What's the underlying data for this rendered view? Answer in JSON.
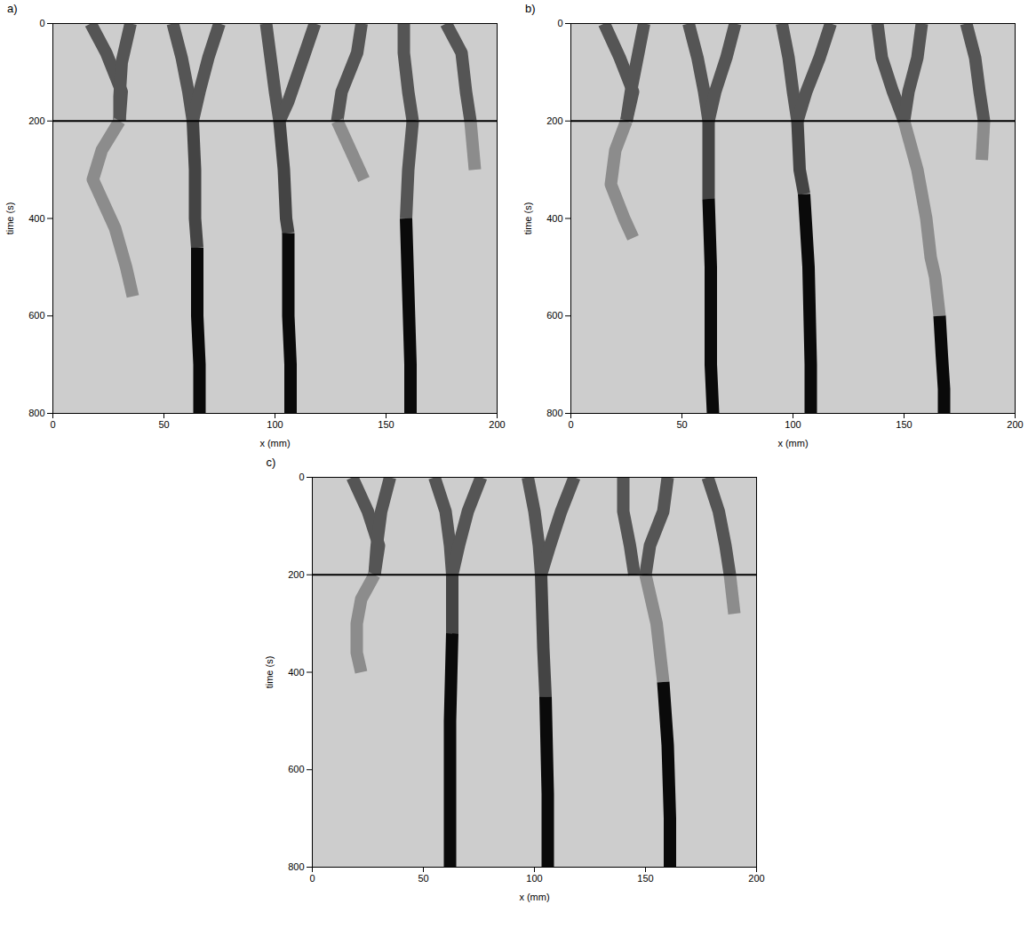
{
  "chart_data": [
    {
      "type": "line",
      "title": "a)",
      "x_label": "x (mm)",
      "y_label": "time (s)",
      "xlim": [
        0,
        200
      ],
      "xticks": [
        0,
        50,
        100,
        150,
        200
      ],
      "ylim": [
        800,
        0
      ],
      "yticks": [
        0,
        200,
        400,
        600,
        800
      ],
      "grid": false,
      "reference_line": 200,
      "series": [
        {
          "color": "#555555",
          "x": [
            17,
            24,
            31,
            30
          ],
          "y": [
            0,
            60,
            140,
            200
          ]
        },
        {
          "color": "#555555",
          "x": [
            35,
            31,
            30,
            30
          ],
          "y": [
            0,
            80,
            150,
            200
          ]
        },
        {
          "color": "#555555",
          "x": [
            54,
            58,
            61,
            63
          ],
          "y": [
            0,
            70,
            140,
            200
          ]
        },
        {
          "color": "#555555",
          "x": [
            75,
            70,
            66,
            63
          ],
          "y": [
            0,
            70,
            140,
            200
          ]
        },
        {
          "color": "#555555",
          "x": [
            96,
            98,
            100,
            102
          ],
          "y": [
            0,
            70,
            140,
            200
          ]
        },
        {
          "color": "#555555",
          "x": [
            118,
            112,
            106,
            102
          ],
          "y": [
            0,
            80,
            160,
            200
          ]
        },
        {
          "color": "#555555",
          "x": [
            139,
            137,
            130,
            128
          ],
          "y": [
            0,
            60,
            140,
            200
          ]
        },
        {
          "color": "#555555",
          "x": [
            158,
            158,
            160,
            162
          ],
          "y": [
            0,
            60,
            140,
            200
          ]
        },
        {
          "color": "#555555",
          "x": [
            177,
            184,
            186,
            188
          ],
          "y": [
            0,
            60,
            140,
            200
          ]
        },
        {
          "color": "#8c8c8c",
          "x": [
            30,
            22,
            18,
            28,
            33,
            36
          ],
          "y": [
            200,
            260,
            320,
            420,
            500,
            560
          ]
        },
        {
          "color": "#8c8c8c",
          "x": [
            128,
            134,
            140
          ],
          "y": [
            200,
            260,
            320
          ]
        },
        {
          "color": "#8c8c8c",
          "x": [
            188,
            190
          ],
          "y": [
            200,
            300
          ]
        },
        {
          "color": "#444444",
          "x": [
            63,
            64,
            64,
            65
          ],
          "y": [
            200,
            300,
            400,
            460
          ]
        },
        {
          "color": "#0a0a0a",
          "x": [
            65,
            65,
            66,
            66
          ],
          "y": [
            460,
            600,
            700,
            800
          ]
        },
        {
          "color": "#444444",
          "x": [
            102,
            104,
            105,
            106
          ],
          "y": [
            200,
            300,
            400,
            430
          ]
        },
        {
          "color": "#0a0a0a",
          "x": [
            106,
            106,
            107,
            107
          ],
          "y": [
            430,
            600,
            700,
            800
          ]
        },
        {
          "color": "#555555",
          "x": [
            162,
            160,
            159
          ],
          "y": [
            200,
            300,
            400
          ]
        },
        {
          "color": "#0a0a0a",
          "x": [
            159,
            160,
            161,
            161
          ],
          "y": [
            400,
            550,
            700,
            800
          ]
        }
      ]
    },
    {
      "type": "line",
      "title": "b)",
      "x_label": "x (mm)",
      "y_label": "time (s)",
      "xlim": [
        0,
        200
      ],
      "xticks": [
        0,
        50,
        100,
        150,
        200
      ],
      "ylim": [
        800,
        0
      ],
      "yticks": [
        0,
        200,
        400,
        600,
        800
      ],
      "grid": false,
      "reference_line": 200,
      "series": [
        {
          "color": "#555555",
          "x": [
            15,
            22,
            28,
            25
          ],
          "y": [
            0,
            70,
            140,
            200
          ]
        },
        {
          "color": "#555555",
          "x": [
            33,
            30,
            27,
            25
          ],
          "y": [
            0,
            70,
            140,
            200
          ]
        },
        {
          "color": "#555555",
          "x": [
            53,
            57,
            60,
            62
          ],
          "y": [
            0,
            70,
            140,
            200
          ]
        },
        {
          "color": "#555555",
          "x": [
            74,
            70,
            65,
            62
          ],
          "y": [
            0,
            70,
            140,
            200
          ]
        },
        {
          "color": "#555555",
          "x": [
            95,
            98,
            100,
            102
          ],
          "y": [
            0,
            70,
            140,
            200
          ]
        },
        {
          "color": "#555555",
          "x": [
            117,
            112,
            106,
            102
          ],
          "y": [
            0,
            70,
            140,
            200
          ]
        },
        {
          "color": "#555555",
          "x": [
            138,
            140,
            145,
            150
          ],
          "y": [
            0,
            70,
            140,
            200
          ]
        },
        {
          "color": "#555555",
          "x": [
            158,
            156,
            152,
            150
          ],
          "y": [
            0,
            70,
            140,
            200
          ]
        },
        {
          "color": "#555555",
          "x": [
            178,
            182,
            184,
            186
          ],
          "y": [
            0,
            70,
            140,
            200
          ]
        },
        {
          "color": "#8c8c8c",
          "x": [
            25,
            20,
            18,
            24,
            28
          ],
          "y": [
            200,
            260,
            330,
            400,
            440
          ]
        },
        {
          "color": "#8c8c8c",
          "x": [
            150,
            156,
            160,
            162,
            164,
            166
          ],
          "y": [
            200,
            300,
            400,
            480,
            520,
            600
          ]
        },
        {
          "color": "#8c8c8c",
          "x": [
            186,
            185
          ],
          "y": [
            200,
            280
          ]
        },
        {
          "color": "#444444",
          "x": [
            62,
            62,
            62
          ],
          "y": [
            200,
            300,
            360
          ]
        },
        {
          "color": "#0a0a0a",
          "x": [
            62,
            63,
            63,
            64
          ],
          "y": [
            360,
            500,
            700,
            800
          ]
        },
        {
          "color": "#444444",
          "x": [
            102,
            103,
            105
          ],
          "y": [
            200,
            300,
            350
          ]
        },
        {
          "color": "#0a0a0a",
          "x": [
            105,
            107,
            108,
            108
          ],
          "y": [
            350,
            500,
            700,
            800
          ]
        },
        {
          "color": "#0a0a0a",
          "x": [
            166,
            167,
            168,
            168
          ],
          "y": [
            600,
            680,
            750,
            800
          ]
        }
      ]
    },
    {
      "type": "line",
      "title": "c)",
      "x_label": "x (mm)",
      "y_label": "time (s)",
      "xlim": [
        0,
        200
      ],
      "xticks": [
        0,
        50,
        100,
        150,
        200
      ],
      "ylim": [
        800,
        0
      ],
      "yticks": [
        0,
        200,
        400,
        600,
        800
      ],
      "grid": false,
      "reference_line": 200,
      "series": [
        {
          "color": "#555555",
          "x": [
            18,
            25,
            30,
            28
          ],
          "y": [
            0,
            70,
            140,
            200
          ]
        },
        {
          "color": "#555555",
          "x": [
            35,
            31,
            29,
            28
          ],
          "y": [
            0,
            70,
            140,
            200
          ]
        },
        {
          "color": "#555555",
          "x": [
            55,
            60,
            62,
            63
          ],
          "y": [
            0,
            70,
            140,
            200
          ]
        },
        {
          "color": "#555555",
          "x": [
            76,
            70,
            66,
            63
          ],
          "y": [
            0,
            70,
            140,
            200
          ]
        },
        {
          "color": "#555555",
          "x": [
            97,
            100,
            102,
            103
          ],
          "y": [
            0,
            70,
            140,
            200
          ]
        },
        {
          "color": "#555555",
          "x": [
            118,
            112,
            107,
            103
          ],
          "y": [
            0,
            70,
            140,
            200
          ]
        },
        {
          "color": "#555555",
          "x": [
            140,
            140,
            143,
            145
          ],
          "y": [
            0,
            70,
            140,
            200
          ]
        },
        {
          "color": "#555555",
          "x": [
            160,
            158,
            152,
            150
          ],
          "y": [
            0,
            70,
            140,
            200
          ]
        },
        {
          "color": "#555555",
          "x": [
            178,
            183,
            186,
            188
          ],
          "y": [
            0,
            70,
            140,
            200
          ]
        },
        {
          "color": "#8c8c8c",
          "x": [
            28,
            22,
            20,
            20,
            22
          ],
          "y": [
            200,
            250,
            300,
            360,
            400
          ]
        },
        {
          "color": "#8c8c8c",
          "x": [
            150,
            155,
            158
          ],
          "y": [
            200,
            300,
            420
          ]
        },
        {
          "color": "#8c8c8c",
          "x": [
            188,
            190
          ],
          "y": [
            200,
            280
          ]
        },
        {
          "color": "#444444",
          "x": [
            63,
            63
          ],
          "y": [
            200,
            320
          ]
        },
        {
          "color": "#0a0a0a",
          "x": [
            63,
            62,
            62,
            62
          ],
          "y": [
            320,
            500,
            700,
            800
          ]
        },
        {
          "color": "#444444",
          "x": [
            103,
            104,
            105
          ],
          "y": [
            200,
            350,
            450
          ]
        },
        {
          "color": "#0a0a0a",
          "x": [
            105,
            106,
            106
          ],
          "y": [
            450,
            650,
            800
          ]
        },
        {
          "color": "#0a0a0a",
          "x": [
            158,
            160,
            161,
            161
          ],
          "y": [
            420,
            550,
            700,
            800
          ]
        }
      ]
    }
  ]
}
